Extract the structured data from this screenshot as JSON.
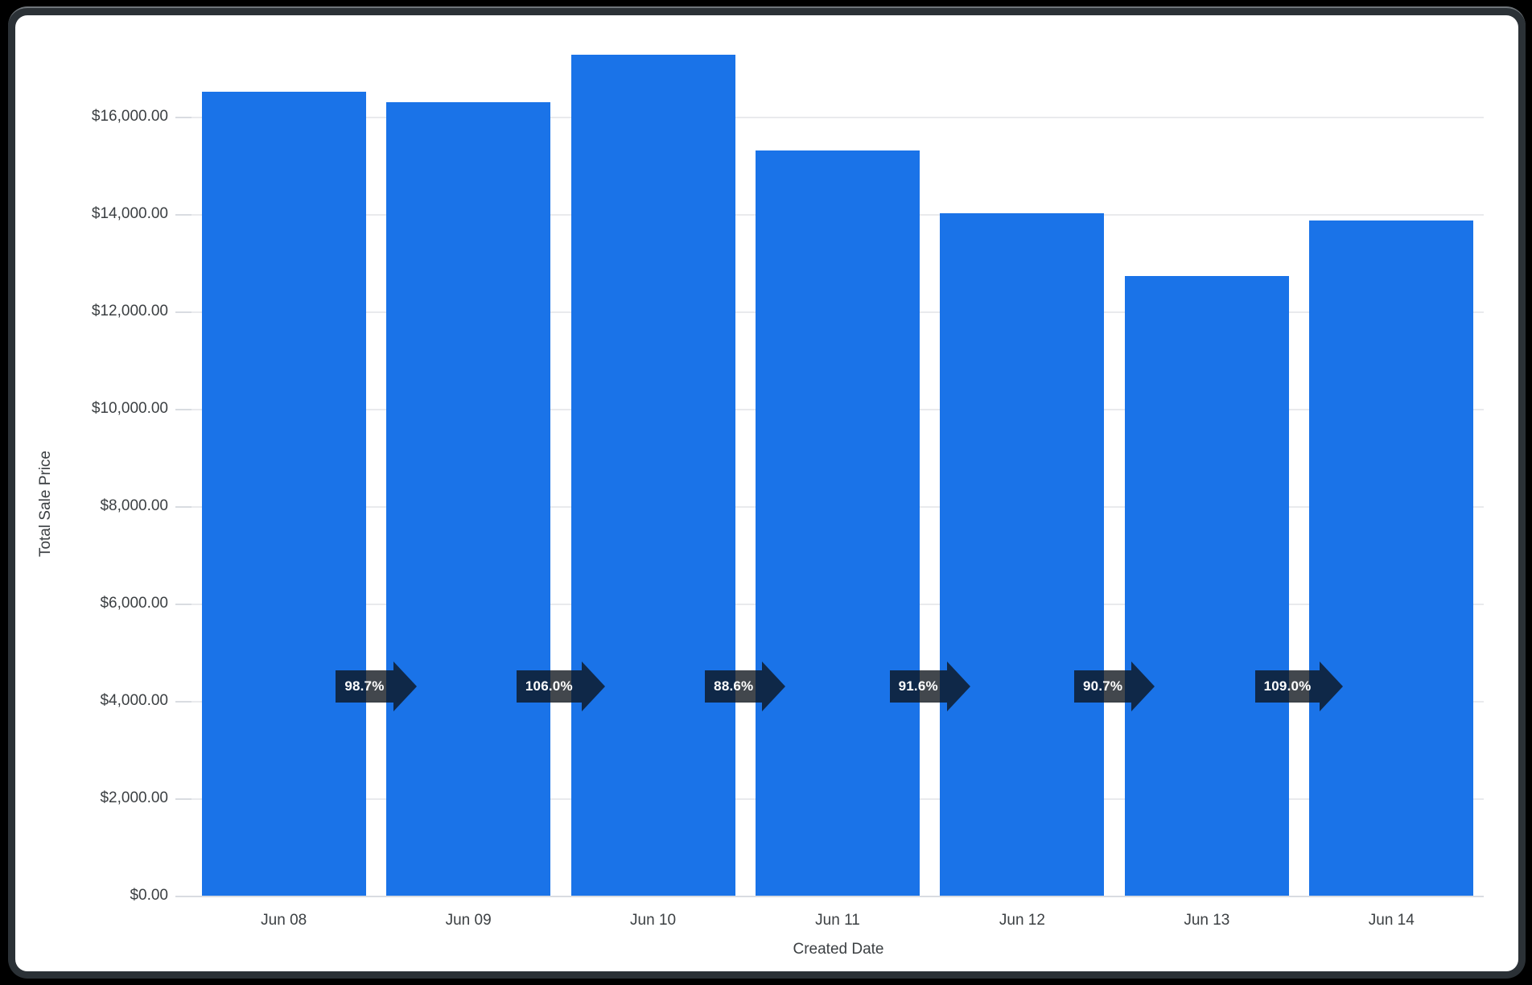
{
  "card": {
    "background": "#ffffff",
    "frame_color": "#2b3136",
    "page_background": "#000000"
  },
  "chart_data": {
    "type": "bar",
    "title": "",
    "xlabel": "Created Date",
    "ylabel": "Total Sale Price",
    "categories": [
      "Jun 08",
      "Jun 09",
      "Jun 10",
      "Jun 11",
      "Jun 12",
      "Jun 13",
      "Jun 14"
    ],
    "values": [
      16515,
      16300,
      17280,
      15310,
      14020,
      12720,
      13865
    ],
    "bar_color": "#1a73e8",
    "grid": true,
    "legend_position": "none",
    "ylim": [
      0,
      17600
    ],
    "yticks": [
      {
        "value": 0,
        "label": "$0.00"
      },
      {
        "value": 2000,
        "label": "$2,000.00"
      },
      {
        "value": 4000,
        "label": "$4,000.00"
      },
      {
        "value": 6000,
        "label": "$6,000.00"
      },
      {
        "value": 8000,
        "label": "$8,000.00"
      },
      {
        "value": 10000,
        "label": "$10,000.00"
      },
      {
        "value": 12000,
        "label": "$12,000.00"
      },
      {
        "value": 14000,
        "label": "$14,000.00"
      },
      {
        "value": 16000,
        "label": "$16,000.00"
      }
    ],
    "change_badges": {
      "at_value": 4300,
      "badge_color": "rgba(13,19,27,0.78)",
      "text_color": "#ffffff",
      "items": [
        {
          "between": [
            "Jun 08",
            "Jun 09"
          ],
          "label": "98.7%"
        },
        {
          "between": [
            "Jun 09",
            "Jun 10"
          ],
          "label": "106.0%"
        },
        {
          "between": [
            "Jun 10",
            "Jun 11"
          ],
          "label": "88.6%"
        },
        {
          "between": [
            "Jun 11",
            "Jun 12"
          ],
          "label": "91.6%"
        },
        {
          "between": [
            "Jun 12",
            "Jun 13"
          ],
          "label": "90.7%"
        },
        {
          "between": [
            "Jun 13",
            "Jun 14"
          ],
          "label": "109.0%"
        }
      ]
    }
  }
}
